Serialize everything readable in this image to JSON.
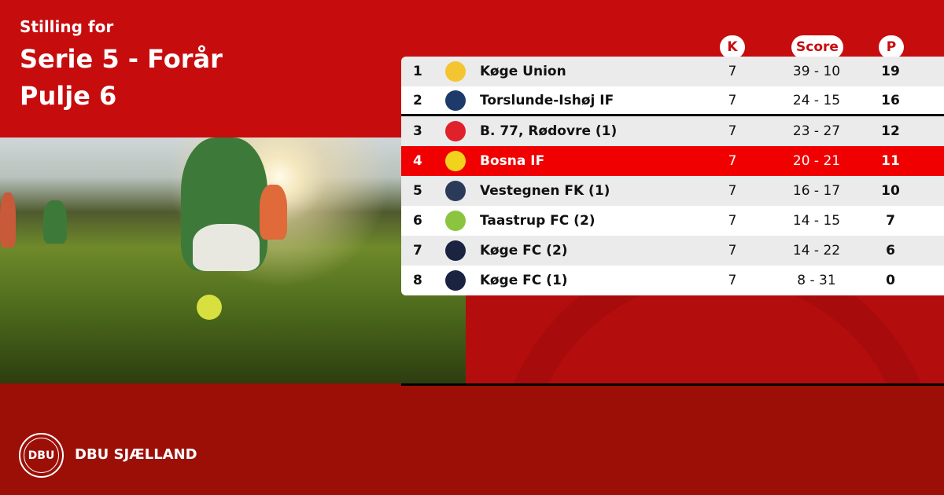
{
  "header": {
    "subtitle": "Stilling for",
    "title": "Serie 5 - Forår",
    "pool": "Pulje 6"
  },
  "columns": {
    "k": "K",
    "score": "Score",
    "p": "P"
  },
  "rows": [
    {
      "pos": "1",
      "team": "Køge Union",
      "k": "7",
      "score": "39 - 10",
      "p": "19",
      "logo_color": "#f3c531"
    },
    {
      "pos": "2",
      "team": "Torslunde-Ishøj IF",
      "k": "7",
      "score": "24 - 15",
      "p": "16",
      "logo_color": "#1d3a6b"
    },
    {
      "pos": "3",
      "team": "B. 77, Rødovre (1)",
      "k": "7",
      "score": "23 - 27",
      "p": "12",
      "logo_color": "#e0202a"
    },
    {
      "pos": "4",
      "team": "Bosna IF",
      "k": "7",
      "score": "20 - 21",
      "p": "11",
      "logo_color": "#f1d21c",
      "highlighted": true
    },
    {
      "pos": "5",
      "team": "Vestegnen FK (1)",
      "k": "7",
      "score": "16 - 17",
      "p": "10",
      "logo_color": "#2c3a5a"
    },
    {
      "pos": "6",
      "team": "Taastrup FC (2)",
      "k": "7",
      "score": "14 - 15",
      "p": "7",
      "logo_color": "#8bc53f"
    },
    {
      "pos": "7",
      "team": "Køge FC (2)",
      "k": "7",
      "score": "14 - 22",
      "p": "6",
      "logo_color": "#1a2340"
    },
    {
      "pos": "8",
      "team": "Køge FC (1)",
      "k": "7",
      "score": "8 - 31",
      "p": "0",
      "logo_color": "#1a2340"
    }
  ],
  "footer": {
    "brand": "DBU SJÆLLAND",
    "logo_text": "DBU"
  },
  "colors": {
    "primary": "#c70c0e",
    "highlight": "#f00000",
    "footer": "#9c0f07"
  }
}
